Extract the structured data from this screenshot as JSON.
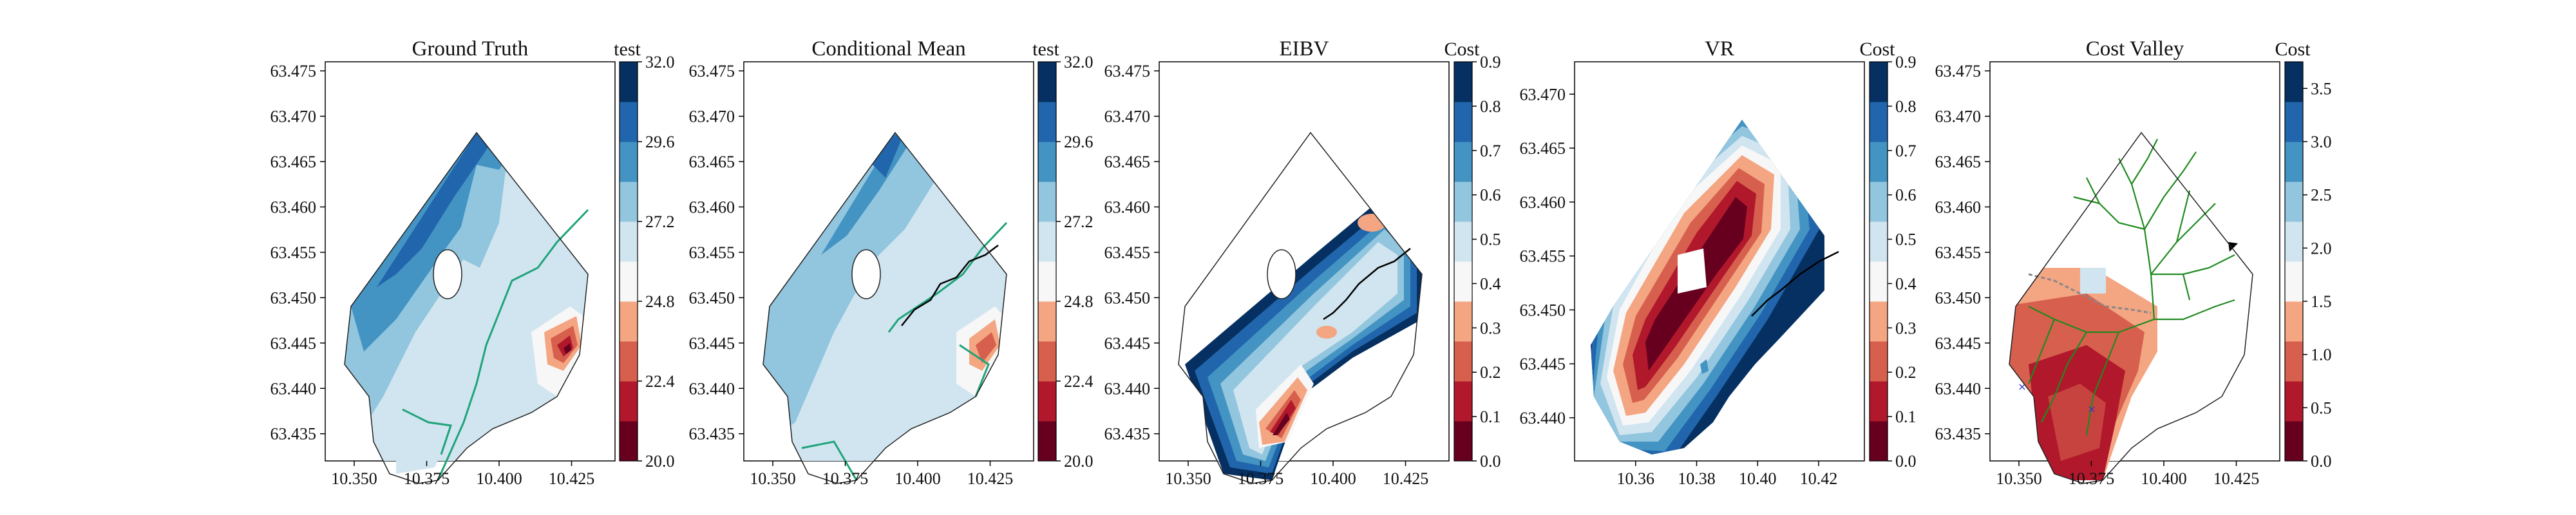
{
  "chart_data": [
    {
      "type": "contour",
      "title": "Ground Truth",
      "xlim": [
        10.34,
        10.44
      ],
      "ylim": [
        63.432,
        63.476
      ],
      "xticks": [
        "10.350",
        "10.375",
        "10.400",
        "10.425"
      ],
      "yticks": [
        "63.435",
        "63.440",
        "63.445",
        "63.450",
        "63.455",
        "63.460",
        "63.465",
        "63.470",
        "63.475"
      ],
      "colorbar": {
        "label": "test",
        "ticks": [
          "20.0",
          "22.4",
          "24.8",
          "27.2",
          "29.6",
          "32.0"
        ],
        "range": [
          20,
          32
        ],
        "colormap": "RdBu"
      }
    },
    {
      "type": "contour",
      "title": "Conditional Mean",
      "xlim": [
        10.34,
        10.44
      ],
      "ylim": [
        63.432,
        63.476
      ],
      "xticks": [
        "10.350",
        "10.375",
        "10.400",
        "10.425"
      ],
      "yticks": [
        "63.435",
        "63.440",
        "63.445",
        "63.450",
        "63.455",
        "63.460",
        "63.465",
        "63.470",
        "63.475"
      ],
      "colorbar": {
        "label": "test",
        "ticks": [
          "20.0",
          "22.4",
          "24.8",
          "27.2",
          "29.6",
          "32.0"
        ],
        "range": [
          20,
          32
        ],
        "colormap": "RdBu"
      }
    },
    {
      "type": "contour",
      "title": "EIBV",
      "xlim": [
        10.34,
        10.44
      ],
      "ylim": [
        63.432,
        63.476
      ],
      "xticks": [
        "10.350",
        "10.375",
        "10.400",
        "10.425"
      ],
      "yticks": [
        "63.435",
        "63.440",
        "63.445",
        "63.450",
        "63.455",
        "63.460",
        "63.465",
        "63.470",
        "63.475"
      ],
      "colorbar": {
        "label": "Cost",
        "ticks": [
          "0.0",
          "0.1",
          "0.2",
          "0.3",
          "0.4",
          "0.5",
          "0.6",
          "0.7",
          "0.8",
          "0.9"
        ],
        "range": [
          0,
          0.9
        ],
        "colormap": "RdBu"
      }
    },
    {
      "type": "contour",
      "title": "VR",
      "xlim": [
        10.34,
        10.435
      ],
      "ylim": [
        63.436,
        63.473
      ],
      "xticks": [
        "10.36",
        "10.38",
        "10.40",
        "10.42"
      ],
      "yticks": [
        "63.440",
        "63.445",
        "63.450",
        "63.455",
        "63.460",
        "63.465",
        "63.470"
      ],
      "colorbar": {
        "label": "Cost",
        "ticks": [
          "0.0",
          "0.1",
          "0.2",
          "0.3",
          "0.4",
          "0.5",
          "0.6",
          "0.7",
          "0.8",
          "0.9"
        ],
        "range": [
          0,
          0.9
        ],
        "colormap": "RdBu"
      }
    },
    {
      "type": "contour",
      "title": "Cost Valley",
      "xlim": [
        10.34,
        10.44
      ],
      "ylim": [
        63.432,
        63.476
      ],
      "xticks": [
        "10.350",
        "10.375",
        "10.400",
        "10.425"
      ],
      "yticks": [
        "63.435",
        "63.440",
        "63.445",
        "63.450",
        "63.455",
        "63.460",
        "63.465",
        "63.470",
        "63.475"
      ],
      "colorbar": {
        "label": "Cost",
        "ticks": [
          "0.0",
          "0.5",
          "1.0",
          "1.5",
          "2.0",
          "2.5",
          "3.0",
          "3.5"
        ],
        "range": [
          0,
          3.75
        ],
        "colormap": "RdBu"
      }
    }
  ],
  "colors": {
    "rdbu8": [
      "#67001f",
      "#b2182b",
      "#d6604d",
      "#f4a582",
      "#f7f7f7",
      "#d1e5f0",
      "#92c5de",
      "#4393c3",
      "#2166ac",
      "#053061"
    ],
    "isoline": "#1fa37a",
    "tree": "#1f8a1f",
    "path": "#000000"
  }
}
